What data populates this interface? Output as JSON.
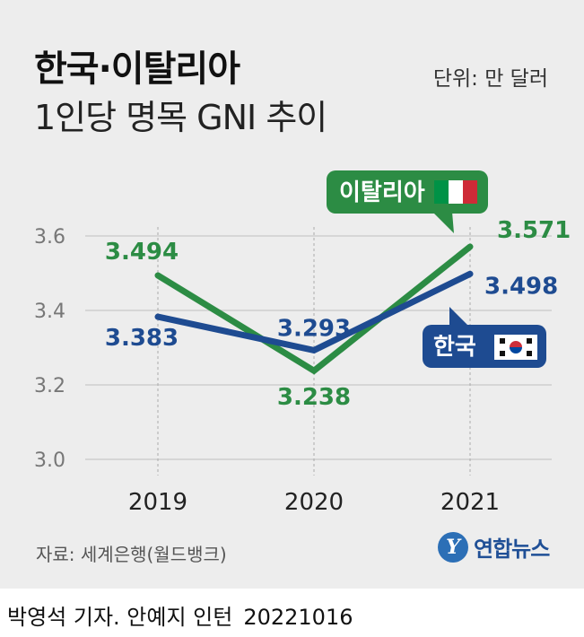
{
  "header": {
    "title_line1": "한국·이탈리아",
    "title_line2": "1인당 명목 GNI 추이",
    "unit": "단위: 만 달러"
  },
  "colors": {
    "korea": "#1e4b91",
    "italy": "#2c8c44",
    "background": "#ededed",
    "grid": "#c8c8c8"
  },
  "chart_data": {
    "type": "line",
    "title": "한국·이탈리아 1인당 명목 GNI 추이",
    "xlabel": "",
    "ylabel": "",
    "unit": "만 달러",
    "categories": [
      "2019",
      "2020",
      "2021"
    ],
    "ylim": [
      3.0,
      3.6
    ],
    "yticks": [
      "3.0",
      "3.2",
      "3.4",
      "3.6"
    ],
    "grid": true,
    "series": [
      {
        "name": "이탈리아",
        "values": [
          3.494,
          3.238,
          3.571
        ],
        "labels": [
          "3.494",
          "3.238",
          "3.571"
        ],
        "flag": "italy-flag-icon"
      },
      {
        "name": "한국",
        "values": [
          3.383,
          3.293,
          3.498
        ],
        "labels": [
          "3.383",
          "3.293",
          "3.498"
        ],
        "flag": "korea-flag-icon"
      }
    ]
  },
  "footer": {
    "source": "자료: 세계은행(월드뱅크)",
    "logo_text": "연합뉴스",
    "logo_mark": "Y",
    "credit": "박영석 기자. 안예지 인턴",
    "date": "20221016"
  }
}
